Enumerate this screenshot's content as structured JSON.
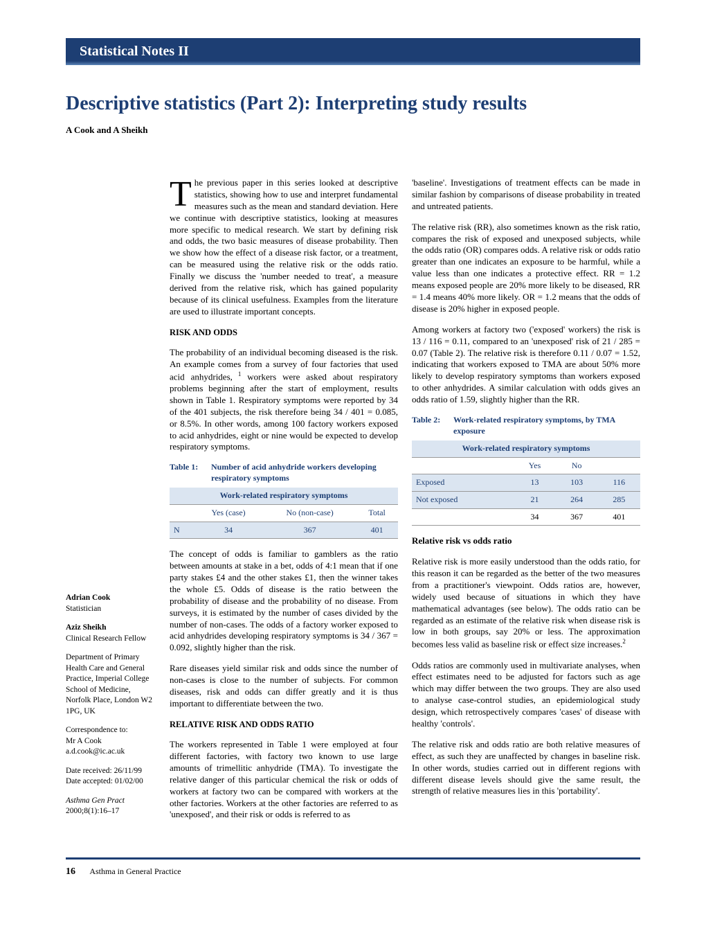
{
  "header": {
    "section_label": "Statistical Notes II"
  },
  "title": "Descriptive statistics (Part 2): Interpreting study results",
  "authors_line": "A Cook and A Sheikh",
  "colors": {
    "brand": "#1d3e73",
    "band_bg": "#dbe5f1",
    "rule": "#999999",
    "text": "#000000",
    "bg": "#ffffff"
  },
  "typography": {
    "body_font": "Times New Roman",
    "body_size_pt": 10,
    "title_size_pt": 21,
    "header_size_pt": 15
  },
  "sidebar": {
    "a1_name": "Adrian Cook",
    "a1_role": "Statistician",
    "a2_name": "Aziz Sheikh",
    "a2_role": "Clinical Research Fellow",
    "dept": "Department of Primary Health Care and General Practice, Imperial College School of Medicine, Norfolk Place, London W2 1PG, UK",
    "corr_label": "Correspondence to:",
    "corr_name": "Mr A Cook",
    "corr_email": "a.d.cook@ic.ac.uk",
    "date_rec": "Date received:  26/11/99",
    "date_acc": "Date accepted:  01/02/00",
    "citation_journal": "Asthma Gen Pract",
    "citation_ref": "2000;8(1):16–17"
  },
  "body": {
    "dropcap": "T",
    "intro_rest": "he previous paper in this series looked at descriptive statistics, showing how to use and interpret fundamental measures such as the mean and standard deviation.  Here we continue with descriptive statistics, looking at measures more specific to medical research.  We start by defining risk and odds, the two basic measures of disease probability.  Then we show how the effect of a disease risk factor, or a treatment, can be measured using the relative risk or the odds ratio.  Finally we discuss the 'number needed to treat', a measure derived from the relative risk, which has gained popularity because of its clinical usefulness.  Examples from the literature are used to illustrate important concepts.",
    "h1": "RISK AND ODDS",
    "p1a": "The probability of an individual becoming diseased is the risk.  An example comes from a survey of four factories that used acid anhydrides,",
    "p1b": " workers were asked about respiratory problems beginning after the start of employment, results shown in Table 1.  Respiratory symptoms were reported by 34 of the 401 subjects, the risk therefore being 34 / 401 = 0.085, or 8.5%.  In other words, among 100 factory workers exposed to acid anhydrides, eight or nine would be expected to develop respiratory symptoms.",
    "p2": "The concept of odds is familiar to gamblers as the ratio between amounts at stake in a bet, odds of 4:1 mean that if one party stakes £4 and the other stakes £1, then the winner takes the whole £5.  Odds of disease is the ratio between the probability of disease and the probability of no disease.  From surveys, it is estimated by the number of cases divided by the number of non-cases.  The odds of a factory worker exposed to acid anhydrides developing respiratory symptoms is 34 / 367 = 0.092, slightly higher than the risk.",
    "p3": "Rare diseases yield similar risk and odds since the number of non-cases is close to the number of subjects.  For common diseases, risk and odds can differ greatly and it is thus important to differentiate between the two.",
    "h2": "RELATIVE RISK AND ODDS RATIO",
    "p4": "The workers represented in Table 1 were employed at four different factories, with factory two known to use large amounts of trimellitic anhydride (TMA).  To investigate the relative danger of this particular chemical the risk or odds of workers at factory two can be compared with workers at the other factories.  Workers at the other factories are referred to as 'unexposed', and their risk or odds is referred to as",
    "p5": "'baseline'.  Investigations of treatment effects can be made in similar fashion by comparisons of disease probability in treated and untreated patients.",
    "p6": "The relative risk (RR), also sometimes known as the risk ratio, compares the risk of exposed and unexposed subjects, while the odds ratio (OR) compares odds.  A relative risk or odds ratio greater than one indicates an exposure to be harmful, while a value less than one indicates a protective effect.  RR = 1.2 means exposed people are 20% more likely to be diseased, RR = 1.4 means 40% more likely.  OR = 1.2 means that the odds of disease is 20% higher in exposed people.",
    "p7": "Among workers at factory two ('exposed' workers) the risk is 13 / 116 = 0.11, compared to an 'unexposed' risk of 21 / 285 = 0.07 (Table 2).  The relative risk is therefore 0.11 / 0.07 = 1.52, indicating that workers exposed to TMA are about 50% more likely to develop respiratory symptoms than workers exposed to other anhydrides.  A similar calculation with odds gives an odds ratio of 1.59, slightly higher than the RR.",
    "sub1": "Relative risk vs odds ratio",
    "p8a": "Relative risk is more easily understood than the odds ratio, for this reason it can be regarded as the better of the two measures from a practitioner's viewpoint.  Odds ratios are, however, widely used because of situations in which they have mathematical advantages (see below).  The odds ratio can be regarded as an estimate of the relative risk when disease risk is low in both groups, say 20% or less.  The approximation becomes less valid as baseline risk or effect size increases.",
    "p9": "Odds ratios are commonly used in multivariate analyses, when effect estimates need to be adjusted for factors such as age which may differ between the two groups.  They are also used to analyse case-control studies, an epidemiological study design, which retrospectively compares 'cases' of disease with healthy 'controls'.",
    "p10": "The relative risk and odds ratio are both relative measures of effect, as such they are unaffected by changes in baseline risk.  In other words, studies carried out in different regions with different disease levels should give the same result, the strength of relative measures lies in this 'portability'."
  },
  "table1": {
    "num": "Table 1:",
    "title": "Number of acid anhydride workers developing respiratory symptoms",
    "header": "Work-related respiratory symptoms",
    "cols": [
      "",
      "Yes (case)",
      "No (non-case)",
      "Total"
    ],
    "row": [
      "N",
      "34",
      "367",
      "401"
    ]
  },
  "table2": {
    "num": "Table 2:",
    "title": "Work-related respiratory symptoms, by TMA exposure",
    "header": "Work-related respiratory symptoms",
    "cols": [
      "",
      "Yes",
      "No",
      ""
    ],
    "rows": [
      [
        "Exposed",
        "13",
        "103",
        "116"
      ],
      [
        "Not exposed",
        "21",
        "264",
        "285"
      ]
    ],
    "total": [
      "",
      "34",
      "367",
      "401"
    ]
  },
  "footer": {
    "page": "16",
    "journal": "Asthma in General Practice"
  }
}
